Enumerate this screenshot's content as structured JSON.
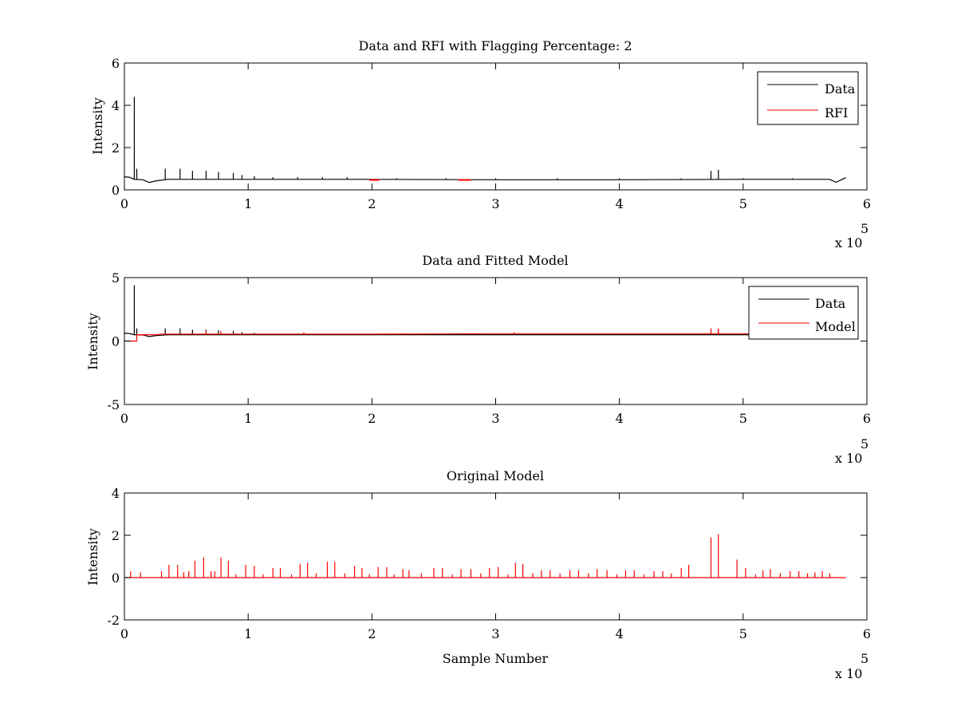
{
  "figure": {
    "background": "#ffffff",
    "colors": {
      "data": "#000000",
      "rfi": "#ff0000",
      "model": "#ff0000"
    }
  },
  "chart_data": [
    {
      "type": "line",
      "title": "Data and RFI with Flagging Percentage: 2",
      "xlabel": "",
      "ylabel": "Intensity",
      "xlim": [
        0,
        6
      ],
      "ylim": [
        0,
        6
      ],
      "xticks": [
        0,
        1,
        2,
        3,
        4,
        5,
        6
      ],
      "yticks": [
        0,
        2,
        4,
        6
      ],
      "x_exponent_label": "x 10",
      "x_exponent": "5",
      "grid": false,
      "legend": {
        "position": "top-right",
        "entries": [
          "Data",
          "RFI"
        ]
      },
      "series": [
        {
          "name": "Data",
          "color": "#000000",
          "baseline": [
            [
              0,
              0.62
            ],
            [
              0.04,
              0.6
            ],
            [
              0.08,
              0.5
            ],
            [
              0.15,
              0.48
            ],
            [
              0.2,
              0.35
            ],
            [
              0.25,
              0.42
            ],
            [
              0.35,
              0.5
            ],
            [
              0.5,
              0.5
            ],
            [
              1.0,
              0.5
            ],
            [
              2.0,
              0.5
            ],
            [
              3.0,
              0.48
            ],
            [
              4.0,
              0.48
            ],
            [
              5.0,
              0.5
            ],
            [
              5.7,
              0.5
            ],
            [
              5.75,
              0.36
            ],
            [
              5.8,
              0.5
            ],
            [
              5.83,
              0.58
            ]
          ],
          "spikes": [
            [
              0.08,
              4.4
            ],
            [
              0.1,
              1.0
            ],
            [
              0.33,
              1.0
            ],
            [
              0.45,
              1.0
            ],
            [
              0.55,
              0.9
            ],
            [
              0.66,
              0.9
            ],
            [
              0.76,
              0.85
            ],
            [
              0.88,
              0.8
            ],
            [
              0.95,
              0.7
            ],
            [
              1.05,
              0.65
            ],
            [
              1.2,
              0.6
            ],
            [
              1.4,
              0.6
            ],
            [
              1.6,
              0.6
            ],
            [
              1.8,
              0.6
            ],
            [
              2.2,
              0.55
            ],
            [
              2.6,
              0.55
            ],
            [
              3.0,
              0.55
            ],
            [
              3.5,
              0.55
            ],
            [
              4.0,
              0.55
            ],
            [
              4.5,
              0.55
            ],
            [
              4.74,
              0.9
            ],
            [
              4.8,
              0.95
            ],
            [
              5.0,
              0.55
            ],
            [
              5.4,
              0.55
            ]
          ]
        },
        {
          "name": "RFI",
          "color": "#ff0000",
          "segments": [
            [
              [
                1.98,
                0.47
              ],
              [
                2.06,
                0.47
              ]
            ],
            [
              [
                2.7,
                0.47
              ],
              [
                2.8,
                0.47
              ]
            ]
          ]
        }
      ]
    },
    {
      "type": "line",
      "title": "Data and Fitted Model",
      "xlabel": "",
      "ylabel": "Intensity",
      "xlim": [
        0,
        6
      ],
      "ylim": [
        -5,
        5
      ],
      "xticks": [
        0,
        1,
        2,
        3,
        4,
        5,
        6
      ],
      "yticks": [
        -5,
        0,
        5
      ],
      "x_exponent_label": "x 10",
      "x_exponent": "5",
      "grid": false,
      "legend": {
        "position": "top-right",
        "entries": [
          "Data",
          "Model"
        ]
      },
      "series": [
        {
          "name": "Data",
          "color": "#000000",
          "baseline": [
            [
              0,
              0.62
            ],
            [
              0.04,
              0.6
            ],
            [
              0.08,
              0.5
            ],
            [
              0.15,
              0.48
            ],
            [
              0.2,
              0.35
            ],
            [
              0.25,
              0.42
            ],
            [
              0.35,
              0.5
            ],
            [
              1.0,
              0.5
            ],
            [
              2.0,
              0.5
            ],
            [
              3.0,
              0.5
            ],
            [
              4.0,
              0.5
            ],
            [
              5.0,
              0.5
            ],
            [
              5.83,
              0.55
            ]
          ],
          "spikes": [
            [
              0.08,
              4.4
            ],
            [
              0.1,
              1.0
            ],
            [
              0.33,
              1.0
            ],
            [
              0.45,
              1.0
            ],
            [
              0.55,
              0.9
            ],
            [
              0.66,
              0.9
            ],
            [
              0.76,
              0.85
            ],
            [
              0.88,
              0.8
            ],
            [
              0.95,
              0.7
            ],
            [
              1.05,
              0.65
            ],
            [
              1.4,
              0.6
            ],
            [
              1.8,
              0.6
            ],
            [
              2.4,
              0.55
            ],
            [
              4.74,
              0.9
            ],
            [
              4.8,
              0.95
            ]
          ]
        },
        {
          "name": "Model",
          "color": "#ff0000",
          "baseline": [
            [
              0,
              0.0
            ],
            [
              0.1,
              0.0
            ],
            [
              0.1,
              0.5
            ],
            [
              0.25,
              0.5
            ],
            [
              0.3,
              0.55
            ],
            [
              1.0,
              0.55
            ],
            [
              2.0,
              0.55
            ],
            [
              3.0,
              0.58
            ],
            [
              4.0,
              0.58
            ],
            [
              5.0,
              0.58
            ],
            [
              5.83,
              0.58
            ]
          ],
          "spikes": [
            [
              0.66,
              0.8
            ],
            [
              0.78,
              0.8
            ],
            [
              1.45,
              0.7
            ],
            [
              3.15,
              0.7
            ],
            [
              4.74,
              1.0
            ],
            [
              4.8,
              1.0
            ]
          ]
        }
      ]
    },
    {
      "type": "line",
      "title": "Original Model",
      "xlabel": "Sample Number",
      "ylabel": "Intensity",
      "xlim": [
        0,
        6
      ],
      "ylim": [
        -2,
        4
      ],
      "xticks": [
        0,
        1,
        2,
        3,
        4,
        5,
        6
      ],
      "yticks": [
        -2,
        0,
        2,
        4
      ],
      "x_exponent_label": "x 10",
      "x_exponent": "5",
      "grid": false,
      "series": [
        {
          "name": "Model",
          "color": "#ff0000",
          "baseline": [
            [
              0,
              0
            ],
            [
              5.83,
              0
            ]
          ],
          "spikes": [
            [
              0.05,
              0.3
            ],
            [
              0.13,
              0.25
            ],
            [
              0.3,
              0.3
            ],
            [
              0.36,
              0.6
            ],
            [
              0.43,
              0.6
            ],
            [
              0.48,
              0.25
            ],
            [
              0.52,
              0.3
            ],
            [
              0.57,
              0.8
            ],
            [
              0.64,
              0.95
            ],
            [
              0.7,
              0.3
            ],
            [
              0.73,
              0.3
            ],
            [
              0.78,
              0.95
            ],
            [
              0.84,
              0.8
            ],
            [
              0.9,
              0.15
            ],
            [
              0.98,
              0.6
            ],
            [
              1.05,
              0.55
            ],
            [
              1.12,
              0.15
            ],
            [
              1.2,
              0.45
            ],
            [
              1.26,
              0.45
            ],
            [
              1.35,
              0.15
            ],
            [
              1.42,
              0.65
            ],
            [
              1.48,
              0.7
            ],
            [
              1.55,
              0.2
            ],
            [
              1.64,
              0.75
            ],
            [
              1.7,
              0.75
            ],
            [
              1.78,
              0.2
            ],
            [
              1.86,
              0.55
            ],
            [
              1.92,
              0.45
            ],
            [
              1.98,
              0.15
            ],
            [
              2.05,
              0.5
            ],
            [
              2.12,
              0.5
            ],
            [
              2.18,
              0.15
            ],
            [
              2.25,
              0.4
            ],
            [
              2.3,
              0.35
            ],
            [
              2.4,
              0.2
            ],
            [
              2.5,
              0.45
            ],
            [
              2.57,
              0.45
            ],
            [
              2.65,
              0.15
            ],
            [
              2.72,
              0.4
            ],
            [
              2.8,
              0.4
            ],
            [
              2.88,
              0.2
            ],
            [
              2.95,
              0.45
            ],
            [
              3.02,
              0.5
            ],
            [
              3.1,
              0.15
            ],
            [
              3.16,
              0.7
            ],
            [
              3.22,
              0.65
            ],
            [
              3.3,
              0.2
            ],
            [
              3.37,
              0.35
            ],
            [
              3.44,
              0.35
            ],
            [
              3.52,
              0.2
            ],
            [
              3.6,
              0.35
            ],
            [
              3.67,
              0.35
            ],
            [
              3.75,
              0.2
            ],
            [
              3.82,
              0.4
            ],
            [
              3.9,
              0.35
            ],
            [
              3.98,
              0.15
            ],
            [
              4.05,
              0.35
            ],
            [
              4.12,
              0.35
            ],
            [
              4.2,
              0.15
            ],
            [
              4.28,
              0.3
            ],
            [
              4.35,
              0.3
            ],
            [
              4.42,
              0.2
            ],
            [
              4.5,
              0.45
            ],
            [
              4.56,
              0.6
            ],
            [
              4.74,
              1.9
            ],
            [
              4.8,
              2.05
            ],
            [
              4.95,
              0.85
            ],
            [
              5.02,
              0.45
            ],
            [
              5.1,
              0.15
            ],
            [
              5.16,
              0.35
            ],
            [
              5.22,
              0.4
            ],
            [
              5.3,
              0.2
            ],
            [
              5.38,
              0.3
            ],
            [
              5.45,
              0.3
            ],
            [
              5.52,
              0.2
            ],
            [
              5.58,
              0.25
            ],
            [
              5.64,
              0.3
            ],
            [
              5.7,
              0.2
            ]
          ]
        }
      ]
    }
  ]
}
